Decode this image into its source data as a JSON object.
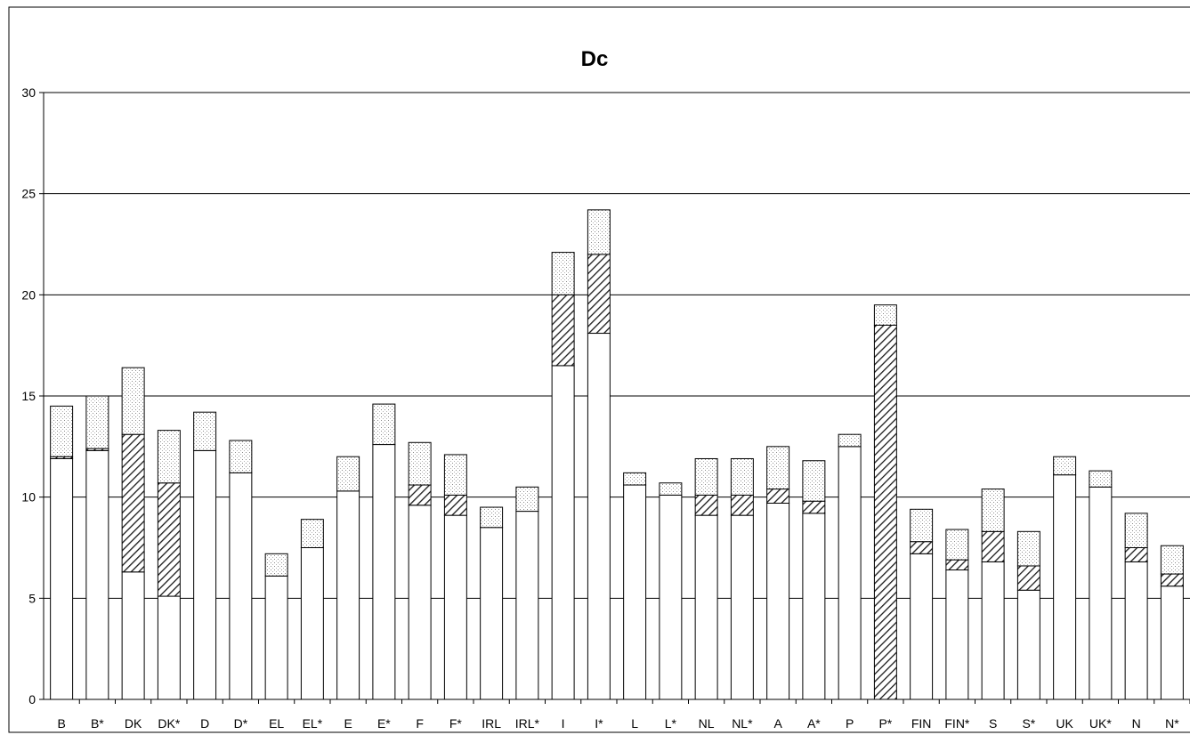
{
  "chart_data": {
    "type": "bar",
    "title": "Dc",
    "xlabel": "",
    "ylabel": "",
    "ylim": [
      0,
      30
    ],
    "yticks": [
      0,
      5,
      10,
      15,
      20,
      25,
      30
    ],
    "grid": true,
    "legend": "none",
    "categories": [
      "B",
      "B*",
      "DK",
      "DK*",
      "D",
      "D*",
      "EL",
      "EL*",
      "E",
      "E*",
      "F",
      "F*",
      "IRL",
      "IRL*",
      "I",
      "I*",
      "L",
      "L*",
      "NL",
      "NL*",
      "A",
      "A*",
      "P",
      "P*",
      "FIN",
      "FIN*",
      "S",
      "S*",
      "UK",
      "UK*",
      "N",
      "N*"
    ],
    "segment_styles": [
      "white",
      "hatched",
      "dotted"
    ],
    "stacks": [
      [
        11.9,
        0.1,
        2.5
      ],
      [
        12.3,
        0.1,
        2.6
      ],
      [
        6.3,
        6.8,
        3.3
      ],
      [
        5.1,
        5.6,
        2.6
      ],
      [
        12.3,
        0.0,
        1.9
      ],
      [
        11.2,
        0.0,
        1.6
      ],
      [
        6.1,
        0.0,
        1.1
      ],
      [
        7.5,
        0.0,
        1.4
      ],
      [
        10.3,
        0.0,
        1.7
      ],
      [
        12.6,
        0.0,
        2.0
      ],
      [
        9.6,
        1.0,
        2.1
      ],
      [
        9.1,
        1.0,
        2.0
      ],
      [
        8.5,
        0.0,
        1.0
      ],
      [
        9.3,
        0.0,
        1.2
      ],
      [
        16.5,
        3.5,
        2.1
      ],
      [
        18.1,
        3.9,
        2.2
      ],
      [
        10.6,
        0.0,
        0.6
      ],
      [
        10.1,
        0.0,
        0.6
      ],
      [
        9.1,
        1.0,
        1.8
      ],
      [
        9.1,
        1.0,
        1.8
      ],
      [
        9.7,
        0.7,
        2.1
      ],
      [
        9.2,
        0.6,
        2.0
      ],
      [
        12.5,
        0.0,
        0.6
      ],
      [
        0.0,
        18.5,
        1.0
      ],
      [
        7.2,
        0.6,
        1.6
      ],
      [
        6.4,
        0.5,
        1.5
      ],
      [
        6.8,
        1.5,
        2.1
      ],
      [
        5.4,
        1.2,
        1.7
      ],
      [
        11.1,
        0.0,
        0.9
      ],
      [
        10.5,
        0.0,
        0.8
      ],
      [
        6.8,
        0.7,
        1.7
      ],
      [
        5.6,
        0.6,
        1.4
      ]
    ]
  }
}
